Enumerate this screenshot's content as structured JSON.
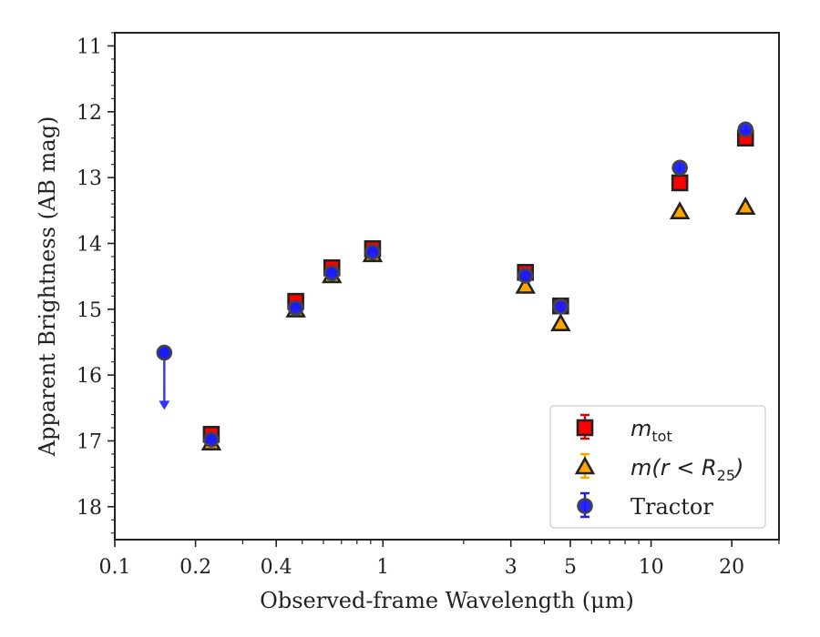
{
  "chart_data": {
    "type": "scatter",
    "xscale": "log",
    "xlim": [
      0.1,
      30
    ],
    "ylim": [
      18.5,
      10.8
    ],
    "y_inverted": true,
    "xlabel": "Observed-frame Wavelength (μm)",
    "ylabel": "Apparent Brightness (AB mag)",
    "x_ticks": [
      {
        "value": 0.1,
        "label": "0.1"
      },
      {
        "value": 0.2,
        "label": "0.2"
      },
      {
        "value": 0.4,
        "label": "0.4"
      },
      {
        "value": 1,
        "label": "1"
      },
      {
        "value": 3,
        "label": "3"
      },
      {
        "value": 5,
        "label": "5"
      },
      {
        "value": 10,
        "label": "10"
      },
      {
        "value": 20,
        "label": "20"
      }
    ],
    "x_minor_ticks": [
      0.3,
      0.5,
      0.6,
      0.7,
      0.8,
      0.9,
      2,
      4,
      6,
      7,
      8,
      9,
      30
    ],
    "y_ticks": [
      {
        "value": 11,
        "label": "11"
      },
      {
        "value": 12,
        "label": "12"
      },
      {
        "value": 13,
        "label": "13"
      },
      {
        "value": 14,
        "label": "14"
      },
      {
        "value": 15,
        "label": "15"
      },
      {
        "value": 16,
        "label": "16"
      },
      {
        "value": 17,
        "label": "17"
      },
      {
        "value": 18,
        "label": "18"
      }
    ],
    "grid": false,
    "legend_placement": "lower-right",
    "series": [
      {
        "name": "m_tot",
        "legend": {
          "main": "m",
          "sub": "tot"
        },
        "marker": "square",
        "color": "#ff0000",
        "edge": "#222222",
        "errcolor": "#dd0000",
        "x": [
          0.229,
          0.473,
          0.645,
          0.915,
          3.4,
          4.6,
          12.8,
          22.5
        ],
        "y": [
          16.9,
          14.88,
          14.37,
          14.08,
          14.44,
          14.95,
          13.08,
          12.4
        ]
      },
      {
        "name": "m(r < R_25)",
        "legend": {
          "main": "m(r < R",
          "sub": "25",
          "tail": ")"
        },
        "marker": "triangle",
        "color": "#ffa500",
        "edge": "#222222",
        "errcolor": "#ffa500",
        "x": [
          0.229,
          0.473,
          0.645,
          0.915,
          3.4,
          4.6,
          12.8,
          22.5
        ],
        "y": [
          17.03,
          15.01,
          14.49,
          14.17,
          14.65,
          15.22,
          13.52,
          13.45
        ]
      },
      {
        "name": "Tractor",
        "legend": {
          "main": "Tractor"
        },
        "marker": "circle",
        "color": "#1a1aff",
        "edge": "#444444",
        "errcolor": "#1a1aff",
        "x": [
          0.229,
          0.473,
          0.645,
          0.915,
          3.4,
          4.6,
          12.8,
          22.5
        ],
        "y": [
          16.98,
          14.98,
          14.45,
          14.13,
          14.49,
          14.96,
          12.85,
          12.27
        ]
      }
    ],
    "upper_limits": [
      {
        "series": "Tractor",
        "x": 0.153,
        "y": 15.66,
        "arrow_to": 16.5,
        "color": "#3333ff"
      }
    ]
  }
}
